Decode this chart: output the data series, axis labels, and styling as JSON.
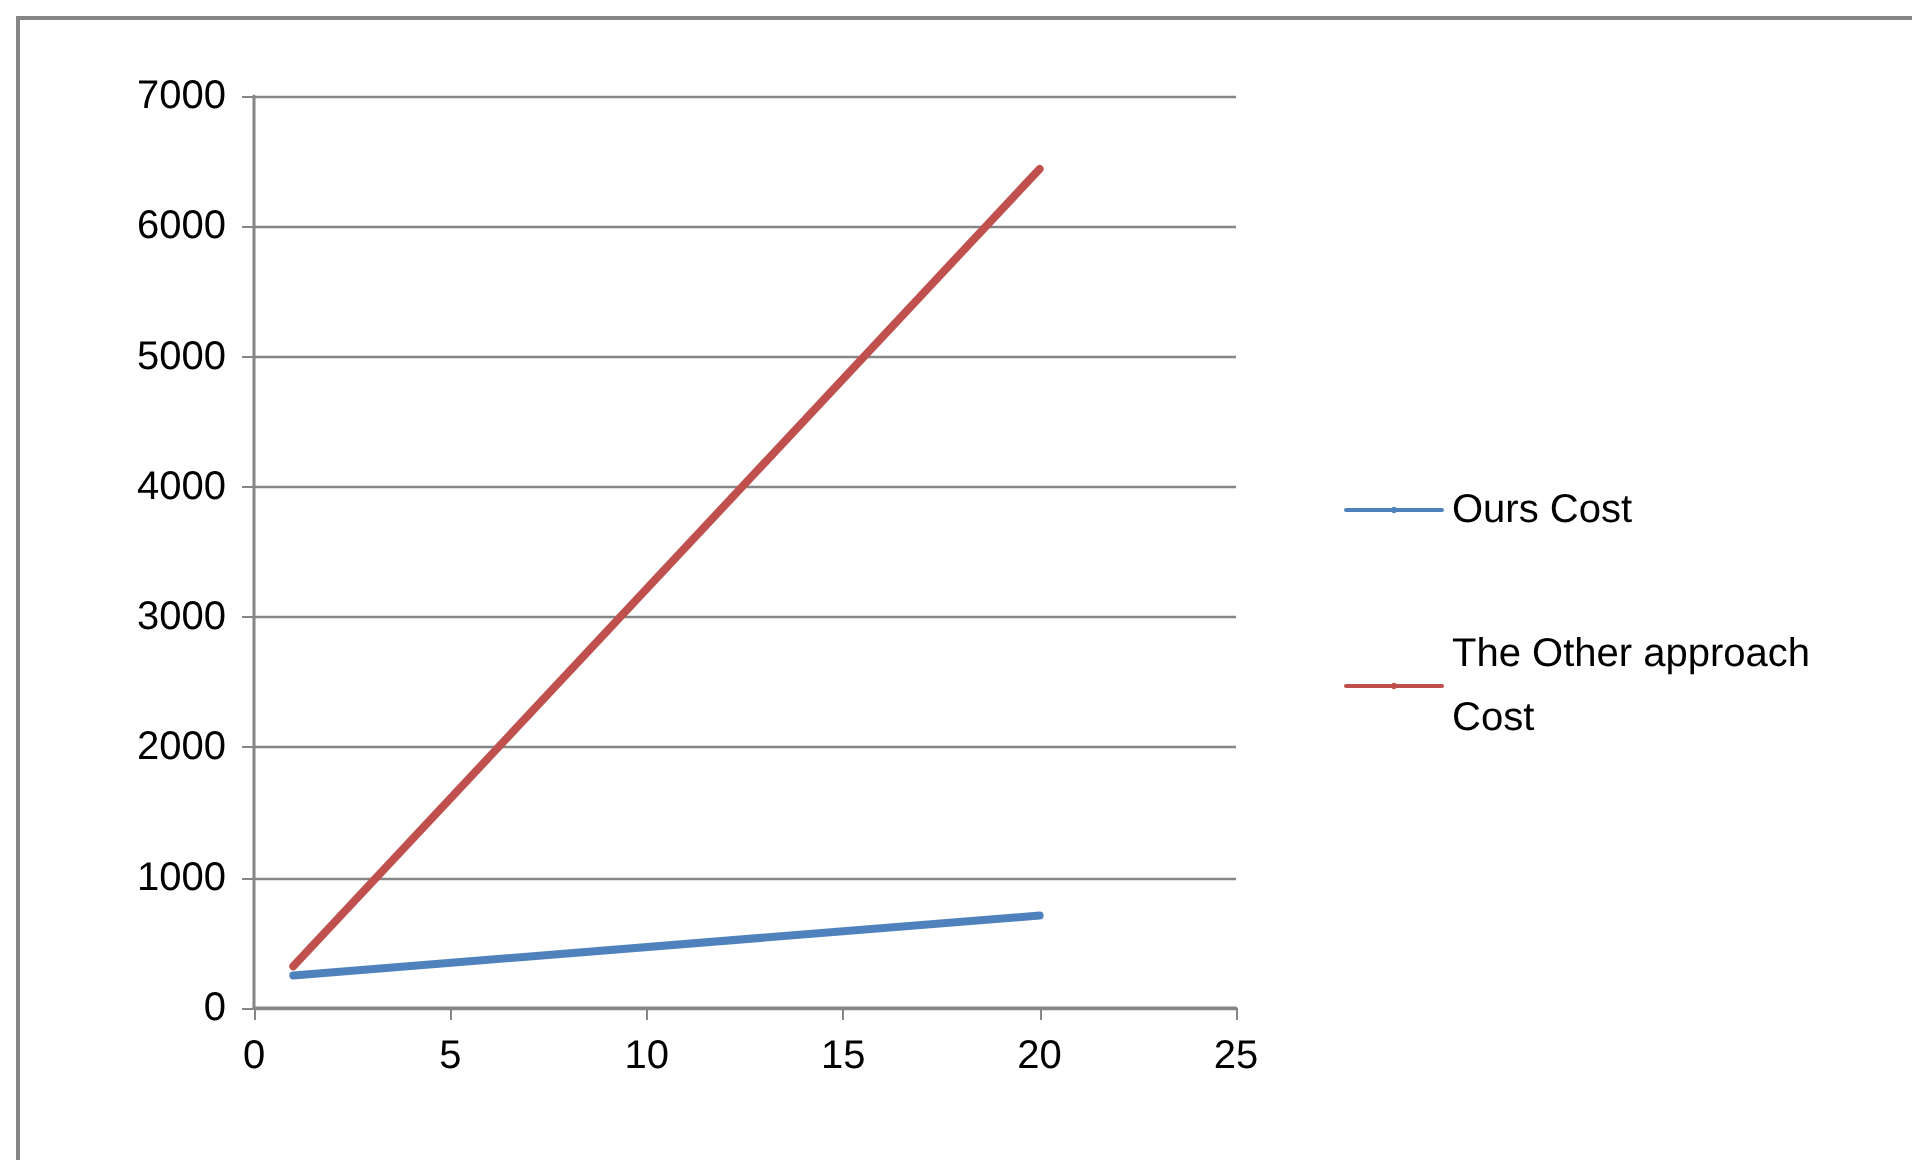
{
  "chart_data": {
    "type": "line",
    "x": [
      1,
      20
    ],
    "series": [
      {
        "name": "Ours Cost",
        "color": "#4f81bd",
        "values": [
          250,
          710
        ]
      },
      {
        "name": "The Other approach Cost",
        "color": "#c0504d",
        "values": [
          320,
          6440
        ]
      }
    ],
    "xlim": [
      0,
      25
    ],
    "xticks": [
      0,
      5,
      10,
      15,
      20,
      25
    ],
    "ylim": [
      0,
      7000
    ],
    "yticks": [
      0,
      1000,
      2000,
      3000,
      4000,
      5000,
      6000,
      7000
    ],
    "grid": "y",
    "legend": "right",
    "marker": "none",
    "line_style": "solid"
  }
}
